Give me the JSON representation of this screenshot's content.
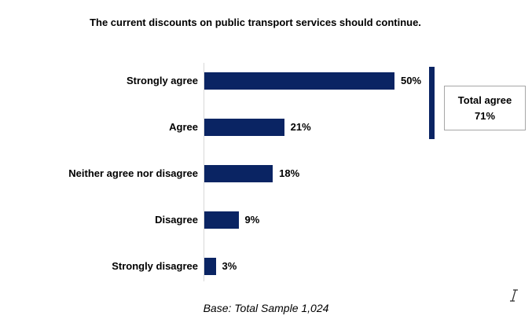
{
  "title": "The current discounts on public transport services should continue.",
  "base_note": "Base: Total Sample 1,024",
  "total_agree_box": {
    "label": "Total agree",
    "value": "71%"
  },
  "colors": {
    "bar": "#0a2463",
    "bracket": "#0a2463",
    "axis_line": "#d9d9d9",
    "box_border": "#a6a6a6",
    "text": "#000000"
  },
  "icons": {
    "cursor": "text-cursor-icon"
  },
  "chart_data": {
    "type": "bar",
    "orientation": "horizontal",
    "title": "The current discounts on public transport services should continue.",
    "categories": [
      "Strongly agree",
      "Agree",
      "Neither agree nor disagree",
      "Disagree",
      "Strongly disagree"
    ],
    "values": [
      50,
      21,
      18,
      9,
      3
    ],
    "value_labels": [
      "50%",
      "21%",
      "18%",
      "9%",
      "3%"
    ],
    "unit": "%",
    "xlabel": "",
    "ylabel": "",
    "xlim": [
      0,
      55
    ],
    "grid": false,
    "legend": false,
    "data_labels": "outside-end, bold",
    "annotations": [
      {
        "text": "Total agree 71%",
        "applies_to": [
          "Strongly agree",
          "Agree"
        ],
        "style": "bracket + boxed label right of bars"
      }
    ],
    "footnote": "Base: Total Sample 1,024"
  }
}
